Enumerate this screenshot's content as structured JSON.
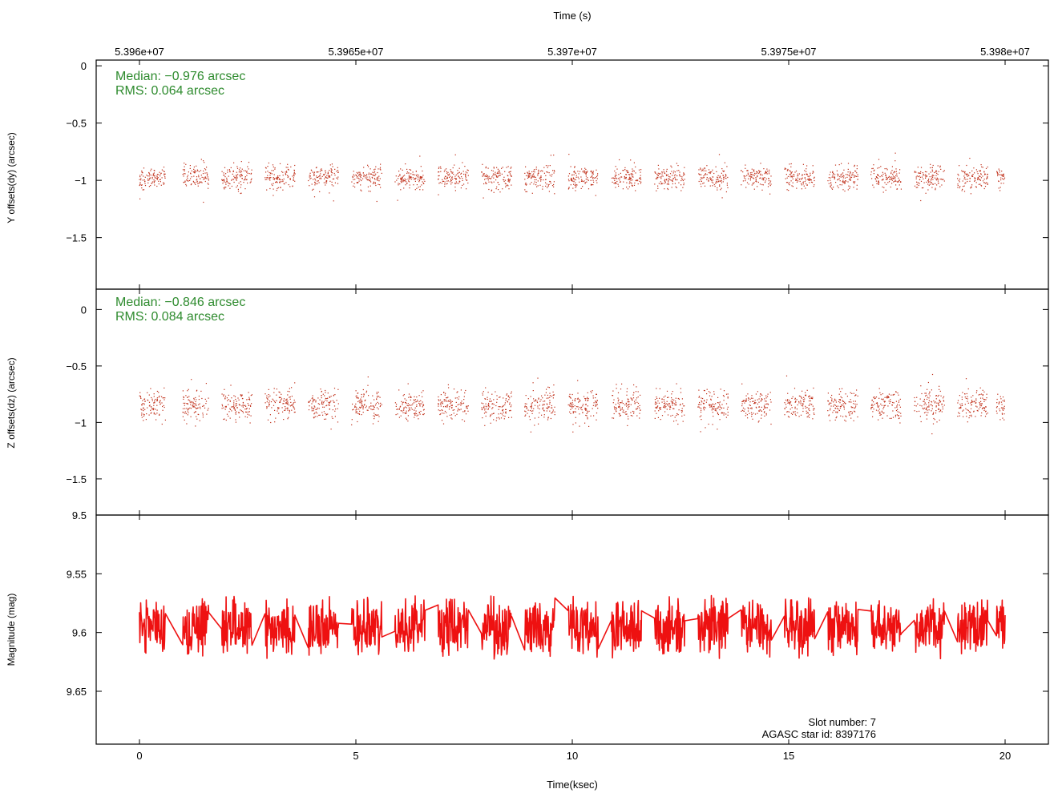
{
  "chart_data": [
    {
      "panel": "y_offsets",
      "type": "scatter",
      "ylabel": "Y offsets(dy) (arcsec)",
      "ylim": [
        -1.95,
        0.05
      ],
      "yticks": [
        0,
        -0.5,
        -1,
        -1.5
      ],
      "ytick_labels": [
        "0",
        "−0.5",
        "−1",
        "−1.5"
      ],
      "stats": {
        "median": "Median: −0.976 arcsec",
        "rms": "RMS: 0.064 arcsec"
      },
      "median": -0.976,
      "rms": 0.064,
      "outlier_amplitude": 0.22,
      "series": [
        {
          "color": "#c0301a",
          "marker": "dot"
        }
      ]
    },
    {
      "panel": "z_offsets",
      "type": "scatter",
      "ylabel": "Z offsets(dz) (arcsec)",
      "ylim": [
        -1.82,
        0.18
      ],
      "yticks": [
        0,
        -0.5,
        -1,
        -1.5
      ],
      "ytick_labels": [
        "0",
        "−0.5",
        "−1",
        "−1.5"
      ],
      "stats": {
        "median": "Median: −0.846 arcsec",
        "rms": "RMS: 0.084 arcsec"
      },
      "median": -0.846,
      "rms": 0.084,
      "outlier_amplitude": 0.26,
      "series": [
        {
          "color": "#c0301a",
          "marker": "dot"
        }
      ]
    },
    {
      "panel": "magnitude",
      "type": "line",
      "ylabel": "Magnitude (mag)",
      "ylim": [
        9.695,
        9.5
      ],
      "yticks": [
        9.5,
        9.55,
        9.6,
        9.65
      ],
      "ytick_labels": [
        "9.5",
        "9.55",
        "9.6",
        "9.65"
      ],
      "median": 9.595,
      "amplitude": 0.028,
      "series": [
        {
          "color": "#ee1111",
          "style": "line"
        }
      ]
    }
  ],
  "axes": {
    "bottom": {
      "label": "Time(ksec)",
      "xlim": [
        -1,
        21
      ],
      "ticks": [
        0,
        5,
        10,
        15,
        20
      ],
      "tick_labels": [
        "0",
        "5",
        "10",
        "15",
        "20"
      ]
    },
    "top": {
      "label": "Time (s)",
      "ticks": [
        53960000.0,
        53965000.0,
        53970000.0,
        53975000.0,
        53980000.0
      ],
      "tick_labels": [
        "5.396e+07",
        "5.3965e+07",
        "5.397e+07",
        "5.3975e+07",
        "5.398e+07"
      ],
      "time_at_zero_ksec": 53960000
    }
  },
  "data_segments_ksec": [
    [
      0,
      0.6
    ],
    [
      1.0,
      1.6
    ],
    [
      1.9,
      2.6
    ],
    [
      2.9,
      3.6
    ],
    [
      3.9,
      4.6
    ],
    [
      4.9,
      5.6
    ],
    [
      5.9,
      6.6
    ],
    [
      6.9,
      7.6
    ],
    [
      7.9,
      8.6
    ],
    [
      8.9,
      9.6
    ],
    [
      9.9,
      10.6
    ],
    [
      10.9,
      11.6
    ],
    [
      11.9,
      12.6
    ],
    [
      12.9,
      13.6
    ],
    [
      13.9,
      14.6
    ],
    [
      14.9,
      15.6
    ],
    [
      15.9,
      16.6
    ],
    [
      16.9,
      17.6
    ],
    [
      17.9,
      18.6
    ],
    [
      18.9,
      19.6
    ],
    [
      19.8,
      20.0
    ]
  ],
  "annotations": {
    "slot": "Slot number: 7",
    "agasc": "AGASC star id: 8397176"
  }
}
